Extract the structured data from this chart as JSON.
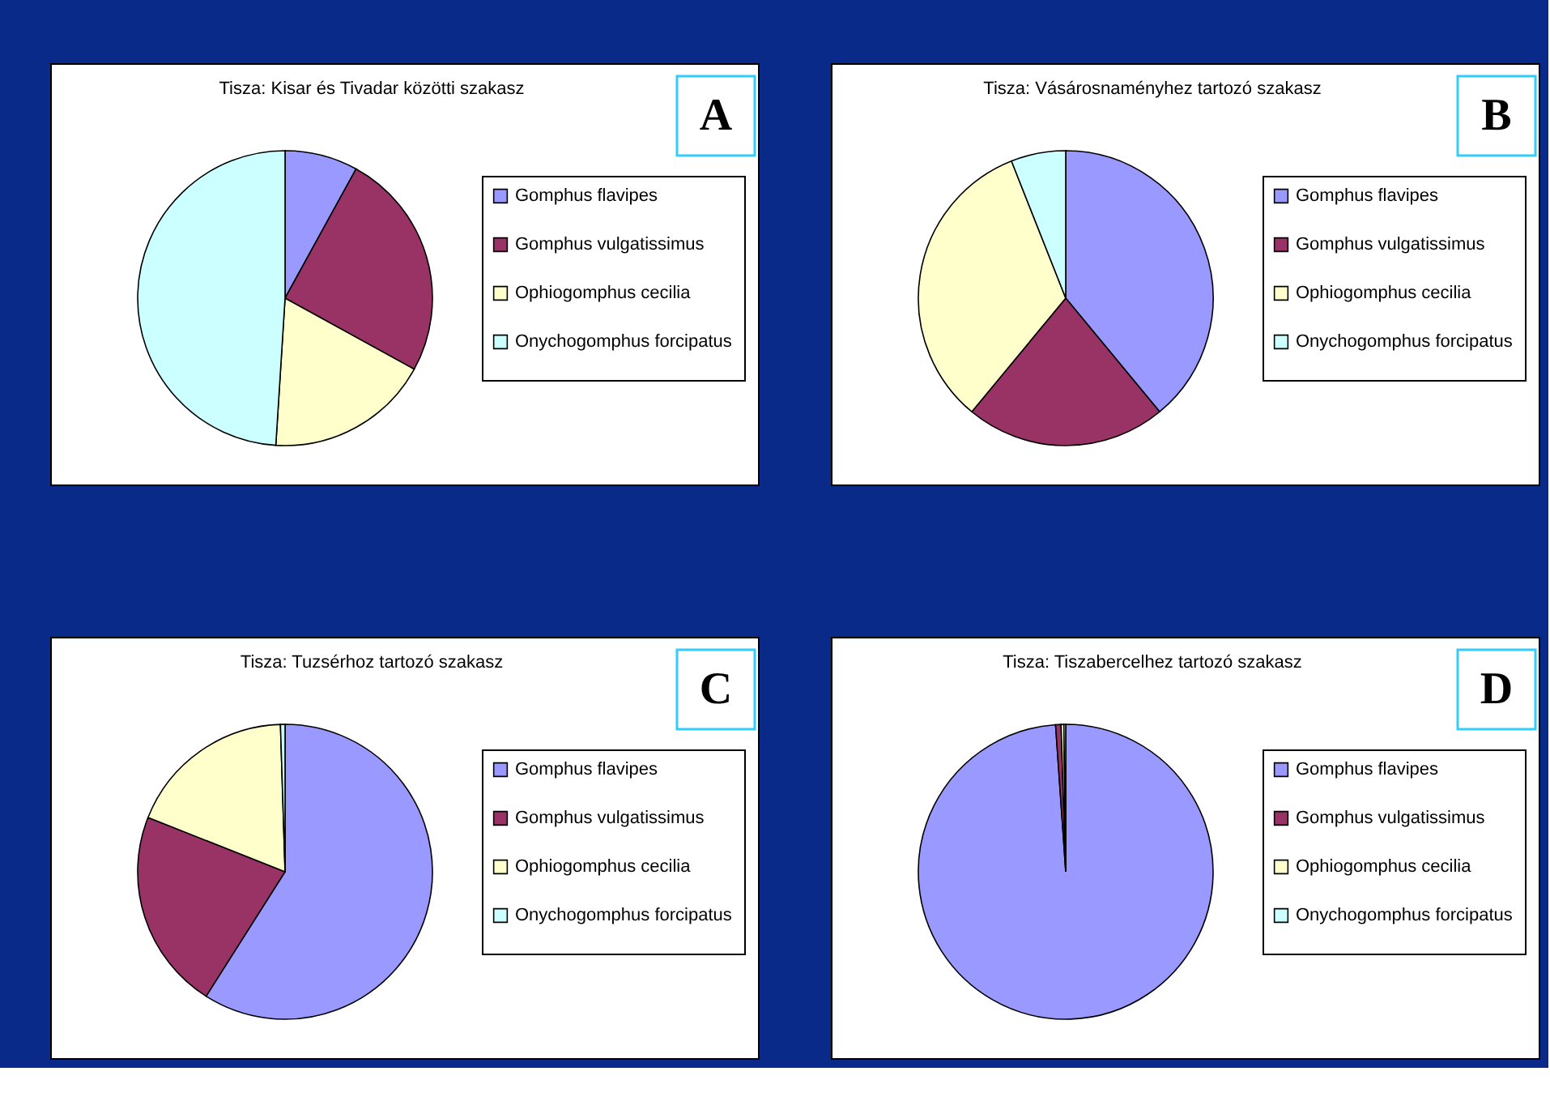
{
  "chart_data": [
    {
      "type": "pie",
      "title": "Tisza: Kisar és Tivadar közötti szakasz",
      "annotations": [
        "A"
      ],
      "legend": "right",
      "categories": [
        "Gomphus flavipes",
        "Gomphus vulgatissimus",
        "Ophiogomphus cecilia",
        "Onychogomphus forcipatus"
      ],
      "values": [
        8,
        25,
        18,
        49
      ],
      "colors": [
        "#9999ff",
        "#993366",
        "#ffffcc",
        "#ccffff"
      ]
    },
    {
      "type": "pie",
      "title": "Tisza: Vásárosnaményhez tartozó szakasz",
      "annotations": [
        "B"
      ],
      "legend": "right",
      "categories": [
        "Gomphus flavipes",
        "Gomphus vulgatissimus",
        "Ophiogomphus cecilia",
        "Onychogomphus forcipatus"
      ],
      "values": [
        39,
        22,
        33,
        6
      ],
      "colors": [
        "#9999ff",
        "#993366",
        "#ffffcc",
        "#ccffff"
      ]
    },
    {
      "type": "pie",
      "title": "Tisza: Tuzsérhoz tartozó szakasz",
      "annotations": [
        "C"
      ],
      "legend": "right",
      "categories": [
        "Gomphus flavipes",
        "Gomphus vulgatissimus",
        "Ophiogomphus cecilia",
        "Onychogomphus forcipatus"
      ],
      "values": [
        59,
        22,
        18.5,
        0.5
      ],
      "colors": [
        "#9999ff",
        "#993366",
        "#ffffcc",
        "#ccffff"
      ]
    },
    {
      "type": "pie",
      "title": "Tisza: Tiszabercelhez tartozó szakasz",
      "annotations": [
        "D"
      ],
      "legend": "right",
      "categories": [
        "Gomphus flavipes",
        "Gomphus vulgatissimus",
        "Ophiogomphus cecilia",
        "Onychogomphus forcipatus"
      ],
      "values": [
        98.9,
        0.6,
        0.3,
        0.2
      ],
      "colors": [
        "#9999ff",
        "#993366",
        "#ffffcc",
        "#ccffff"
      ]
    }
  ]
}
